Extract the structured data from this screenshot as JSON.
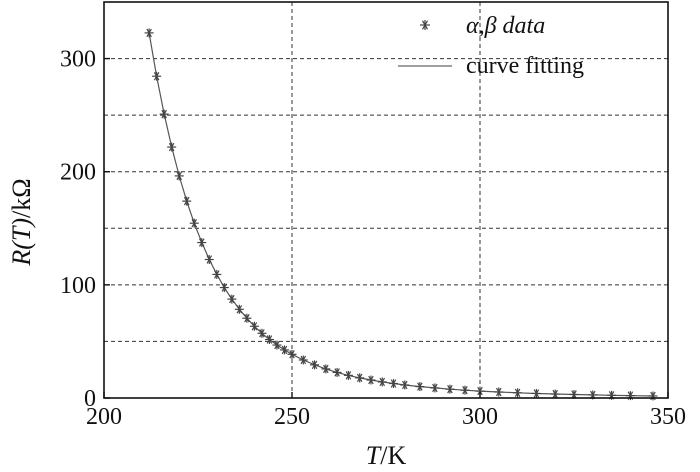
{
  "chart_data": {
    "type": "scatter",
    "xlabel_main": "T",
    "xlabel_unit": "/K",
    "ylabel_main": "R(T)",
    "ylabel_unit": "/kΩ",
    "xlim": [
      200,
      350
    ],
    "ylim": [
      0,
      350
    ],
    "xticks": [
      200,
      250,
      300,
      350
    ],
    "yticks": [
      0,
      100,
      200,
      300
    ],
    "grid": true,
    "grid_x": [
      250,
      300
    ],
    "grid_y": [
      50,
      100,
      150,
      200,
      250,
      300
    ],
    "legend_position": "top-right",
    "series": [
      {
        "name": "α,β data",
        "marker": "asterisk",
        "color": "#444444",
        "x": [
          212.0,
          214.0,
          216.0,
          218.0,
          220.0,
          222.0,
          224.0,
          226.0,
          228.0,
          230.0,
          232.0,
          234.0,
          236.0,
          238.0,
          240.0,
          242.0,
          244.0,
          246.0,
          248.0,
          250.0,
          253.0,
          256.0,
          259.0,
          262.0,
          265.0,
          268.0,
          271.0,
          274.0,
          277.0,
          280.0,
          284.0,
          288.0,
          292.0,
          296.0,
          300.0,
          305.0,
          310.0,
          315.0,
          320.0,
          325.0,
          330.0,
          335.0,
          340.0,
          346.0
        ],
        "y": [
          322.7,
          284.4,
          250.9,
          221.8,
          196.3,
          174.0,
          154.5,
          137.4,
          122.4,
          109.2,
          97.6,
          87.4,
          78.4,
          70.5,
          63.4,
          57.2,
          51.7,
          46.8,
          42.5,
          38.6,
          33.6,
          29.3,
          25.7,
          22.6,
          20.0,
          17.8,
          15.9,
          14.2,
          12.8,
          11.5,
          10.1,
          8.9,
          7.8,
          6.9,
          6.1,
          5.3,
          4.6,
          4.0,
          3.5,
          3.1,
          2.7,
          2.4,
          2.1,
          1.8
        ]
      },
      {
        "name": "curve fitting",
        "color": "#555555",
        "x": [
          212.0,
          214.0,
          216.0,
          218.0,
          220.0,
          222.0,
          224.0,
          226.0,
          228.0,
          230.0,
          232.0,
          234.0,
          236.0,
          238.0,
          240.0,
          242.0,
          244.0,
          246.0,
          248.0,
          250.0,
          253.0,
          256.0,
          259.0,
          262.0,
          265.0,
          268.0,
          271.0,
          274.0,
          277.0,
          280.0,
          284.0,
          288.0,
          292.0,
          296.0,
          300.0,
          305.0,
          310.0,
          315.0,
          320.0,
          325.0,
          330.0,
          335.0,
          340.0,
          346.0
        ],
        "y": [
          322.7,
          284.4,
          250.9,
          221.8,
          196.3,
          174.0,
          154.5,
          137.4,
          122.4,
          109.2,
          97.6,
          87.4,
          78.4,
          70.5,
          63.4,
          57.2,
          51.7,
          46.8,
          42.5,
          38.6,
          33.6,
          29.3,
          25.7,
          22.6,
          20.0,
          17.8,
          15.9,
          14.2,
          12.8,
          11.5,
          10.1,
          8.9,
          7.8,
          6.9,
          6.1,
          5.3,
          4.6,
          4.0,
          3.5,
          3.1,
          2.7,
          2.4,
          2.1,
          1.8
        ]
      }
    ]
  }
}
